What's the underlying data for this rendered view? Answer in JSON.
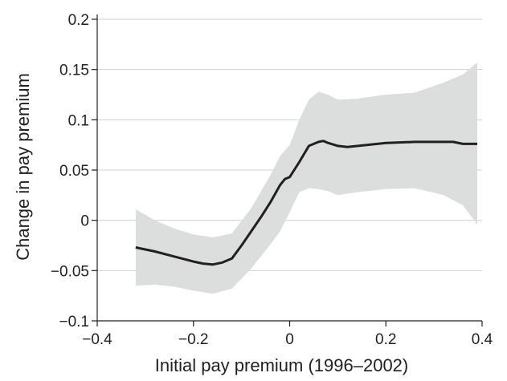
{
  "chart_data": {
    "type": "line",
    "xlabel": "Initial pay premium (1996–2002)",
    "ylabel": "Change in pay premium",
    "xlim": [
      -0.4,
      0.4
    ],
    "ylim": [
      -0.1,
      0.2
    ],
    "xticks": [
      -0.4,
      -0.2,
      0,
      0.2,
      0.4
    ],
    "xtick_labels": [
      "−0.4",
      "−0.2",
      "0",
      "0.2",
      "0.4"
    ],
    "yticks": [
      -0.1,
      -0.05,
      0,
      0.05,
      0.1,
      0.15,
      0.2
    ],
    "ytick_labels": [
      "−0.1",
      "−0.05",
      "0",
      "0.05",
      "0.1",
      "0.15",
      "0.2"
    ],
    "grid": "horizontal",
    "colors": {
      "line": "#231f20",
      "band": "#dcdddd",
      "grid": "#d0d0d0",
      "axis": "#231f20"
    },
    "series": [
      {
        "x": [
          -0.32,
          -0.28,
          -0.24,
          -0.2,
          -0.18,
          -0.16,
          -0.14,
          -0.12,
          -0.1,
          -0.08,
          -0.06,
          -0.04,
          -0.02,
          -0.01,
          0.0,
          0.02,
          0.04,
          0.06,
          0.07,
          0.08,
          0.1,
          0.12,
          0.16,
          0.2,
          0.26,
          0.32,
          0.34,
          0.36,
          0.39
        ],
        "y": [
          -0.027,
          -0.031,
          -0.036,
          -0.041,
          -0.043,
          -0.044,
          -0.042,
          -0.038,
          -0.025,
          -0.011,
          0.003,
          0.018,
          0.035,
          0.041,
          0.043,
          0.058,
          0.074,
          0.078,
          0.079,
          0.077,
          0.074,
          0.073,
          0.075,
          0.077,
          0.078,
          0.078,
          0.078,
          0.076,
          0.076
        ]
      }
    ],
    "confidence_band": {
      "x": [
        -0.32,
        -0.28,
        -0.24,
        -0.2,
        -0.16,
        -0.12,
        -0.08,
        -0.04,
        -0.02,
        0.0,
        0.02,
        0.04,
        0.06,
        0.08,
        0.1,
        0.14,
        0.2,
        0.26,
        0.32,
        0.36,
        0.39
      ],
      "upper": [
        0.011,
        0.0,
        -0.008,
        -0.014,
        -0.017,
        -0.013,
        0.012,
        0.045,
        0.064,
        0.075,
        0.1,
        0.12,
        0.128,
        0.125,
        0.12,
        0.121,
        0.125,
        0.127,
        0.137,
        0.145,
        0.157
      ],
      "lower": [
        -0.065,
        -0.064,
        -0.066,
        -0.07,
        -0.073,
        -0.068,
        -0.048,
        -0.024,
        -0.011,
        0.008,
        0.028,
        0.032,
        0.031,
        0.029,
        0.025,
        0.028,
        0.031,
        0.032,
        0.025,
        0.015,
        -0.004
      ]
    }
  }
}
